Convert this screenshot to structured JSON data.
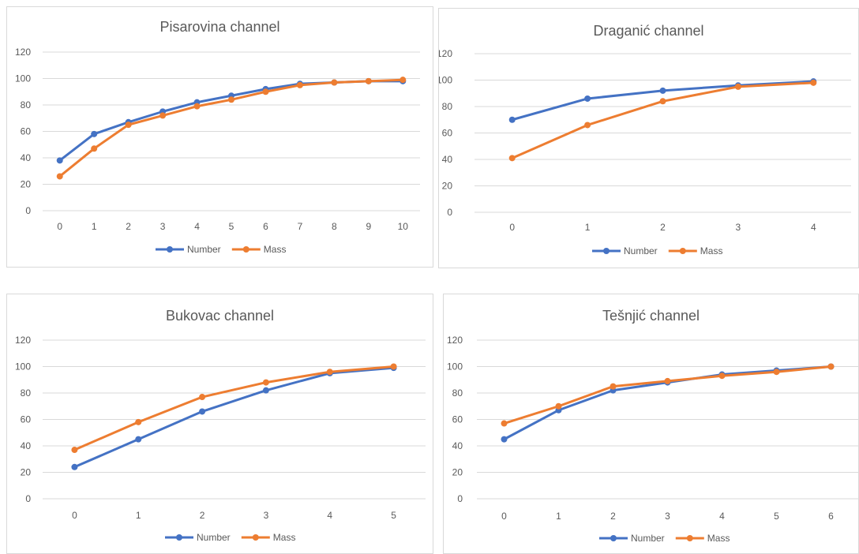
{
  "series_colors": {
    "Number": "#4472c4",
    "Mass": "#ed7d31"
  },
  "chart_data": [
    {
      "type": "line",
      "title": "Pisarovina channel",
      "x": [
        "0",
        "1",
        "2",
        "3",
        "4",
        "5",
        "6",
        "7",
        "8",
        "9",
        "10"
      ],
      "ylim": [
        0,
        120
      ],
      "yticks": [
        "0",
        "20",
        "40",
        "60",
        "80",
        "100",
        "120"
      ],
      "grid": true,
      "legend": "bottom",
      "series": [
        {
          "name": "Number",
          "values": [
            38,
            58,
            67,
            75,
            82,
            87,
            92,
            96,
            97,
            98,
            98
          ]
        },
        {
          "name": "Mass",
          "values": [
            26,
            47,
            65,
            72,
            79,
            84,
            90,
            95,
            97,
            98,
            99
          ]
        }
      ]
    },
    {
      "type": "line",
      "title": "Draganić channel",
      "x": [
        "0",
        "1",
        "2",
        "3",
        "4"
      ],
      "ylim": [
        0,
        120
      ],
      "yticks": [
        "0",
        "20",
        "40",
        "60",
        "80",
        "100",
        "120"
      ],
      "grid": true,
      "legend": "bottom",
      "series": [
        {
          "name": "Number",
          "values": [
            70,
            86,
            92,
            96,
            99
          ]
        },
        {
          "name": "Mass",
          "values": [
            41,
            66,
            84,
            95,
            98
          ]
        }
      ]
    },
    {
      "type": "line",
      "title": "Bukovac channel",
      "x": [
        "0",
        "1",
        "2",
        "3",
        "4",
        "5"
      ],
      "ylim": [
        0,
        120
      ],
      "yticks": [
        "0",
        "20",
        "40",
        "60",
        "80",
        "100",
        "120"
      ],
      "grid": true,
      "legend": "bottom",
      "series": [
        {
          "name": "Number",
          "values": [
            24,
            45,
            66,
            82,
            95,
            99
          ]
        },
        {
          "name": "Mass",
          "values": [
            37,
            58,
            77,
            88,
            96,
            100
          ]
        }
      ]
    },
    {
      "type": "line",
      "title": "Tešnjić channel",
      "x": [
        "0",
        "1",
        "2",
        "3",
        "4",
        "5",
        "6"
      ],
      "ylim": [
        0,
        120
      ],
      "yticks": [
        "0",
        "20",
        "40",
        "60",
        "80",
        "100",
        "120"
      ],
      "grid": true,
      "legend": "bottom",
      "series": [
        {
          "name": "Number",
          "values": [
            45,
            67,
            82,
            88,
            94,
            97,
            100
          ]
        },
        {
          "name": "Mass",
          "values": [
            57,
            70,
            85,
            89,
            93,
            96,
            100
          ]
        }
      ]
    }
  ]
}
